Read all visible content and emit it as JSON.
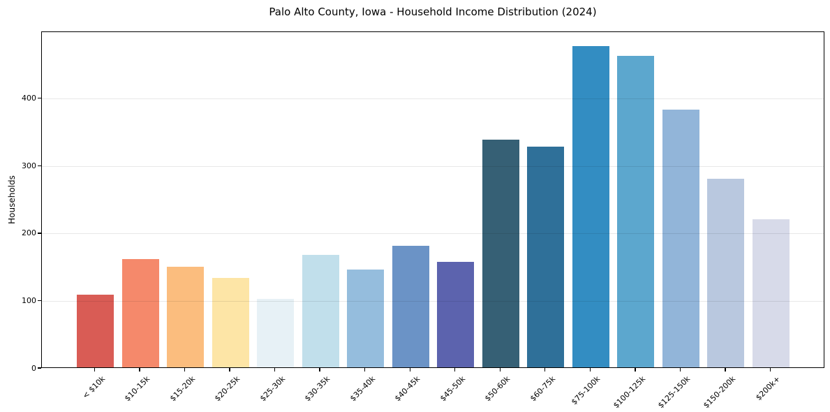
{
  "chart_data": {
    "type": "bar",
    "title": "Palo Alto County, Iowa - Household Income Distribution (2024)",
    "xlabel": "",
    "ylabel": "Households",
    "categories": [
      "< $10k",
      "$10-15k",
      "$15-20k",
      "$20-25k",
      "$25-30k",
      "$30-35k",
      "$35-40k",
      "$40-45k",
      "$45-50k",
      "$50-60k",
      "$60-75k",
      "$75-100k",
      "$100-125k",
      "$125-150k",
      "$150-200k",
      "$200k+"
    ],
    "values": [
      108,
      160,
      149,
      133,
      101,
      167,
      145,
      180,
      156,
      337,
      327,
      476,
      462,
      382,
      280,
      220
    ],
    "bar_colors": [
      "#d95c55",
      "#f5896b",
      "#fbbd7e",
      "#fde5a6",
      "#e7f1f6",
      "#c1dfeb",
      "#95bddd",
      "#6b93c6",
      "#5c63ae",
      "#366075",
      "#2f7099",
      "#338dc2",
      "#5ca7ce",
      "#92b5d9",
      "#b9c8df",
      "#d7dae9"
    ],
    "ylim": [
      0,
      499
    ],
    "yticks": [
      0,
      100,
      200,
      300,
      400
    ],
    "grid": "horizontal",
    "gridline_color": "rgba(0,0,0,0.09)",
    "spine_color": "#000000",
    "background": "#ffffff",
    "xtick_rotation": 45,
    "legend": "none"
  }
}
